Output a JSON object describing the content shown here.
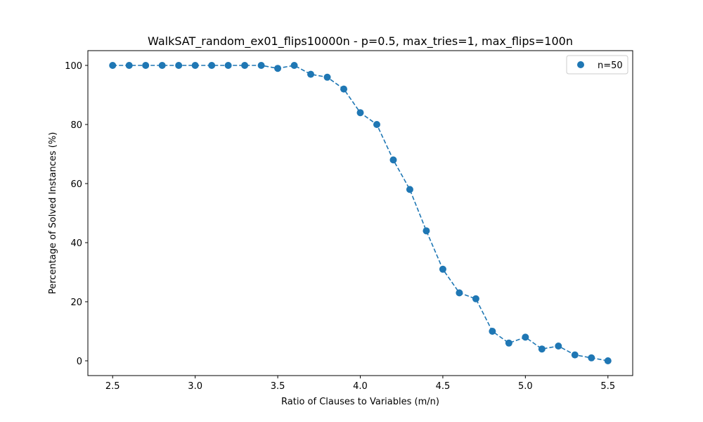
{
  "chart_data": {
    "type": "scatter",
    "title": "WalkSAT_random_ex01_flips10000n - p=0.5, max_tries=1, max_flips=100n",
    "xlabel": "Ratio of Clauses to Variables (m/n)",
    "ylabel": "Percentage of Solved Instances (%)",
    "xlim": [
      2.35,
      5.65
    ],
    "ylim": [
      -5,
      105
    ],
    "x_ticks": [
      2.5,
      3.0,
      3.5,
      4.0,
      4.5,
      5.0,
      5.5
    ],
    "x_tick_labels": [
      "2.5",
      "3.0",
      "3.5",
      "4.0",
      "4.5",
      "5.0",
      "5.5"
    ],
    "y_ticks": [
      0,
      20,
      40,
      60,
      80,
      100
    ],
    "y_tick_labels": [
      "0",
      "20",
      "40",
      "60",
      "80",
      "100"
    ],
    "grid": false,
    "legend_position": "top-right",
    "series": [
      {
        "name": "n=50",
        "color": "#1f77b4",
        "line_style": "dashed",
        "marker": "circle",
        "x": [
          2.5,
          2.6,
          2.7,
          2.8,
          2.9,
          3.0,
          3.1,
          3.2,
          3.3,
          3.4,
          3.5,
          3.6,
          3.7,
          3.8,
          3.9,
          4.0,
          4.1,
          4.2,
          4.3,
          4.4,
          4.5,
          4.6,
          4.7,
          4.8,
          4.9,
          5.0,
          5.1,
          5.2,
          5.3,
          5.4,
          5.5
        ],
        "y": [
          100,
          100,
          100,
          100,
          100,
          100,
          100,
          100,
          100,
          100,
          99,
          100,
          97,
          96,
          92,
          84,
          80,
          68,
          58,
          44,
          31,
          23,
          21,
          10,
          6,
          8,
          4,
          5,
          2,
          1,
          0
        ]
      }
    ]
  }
}
